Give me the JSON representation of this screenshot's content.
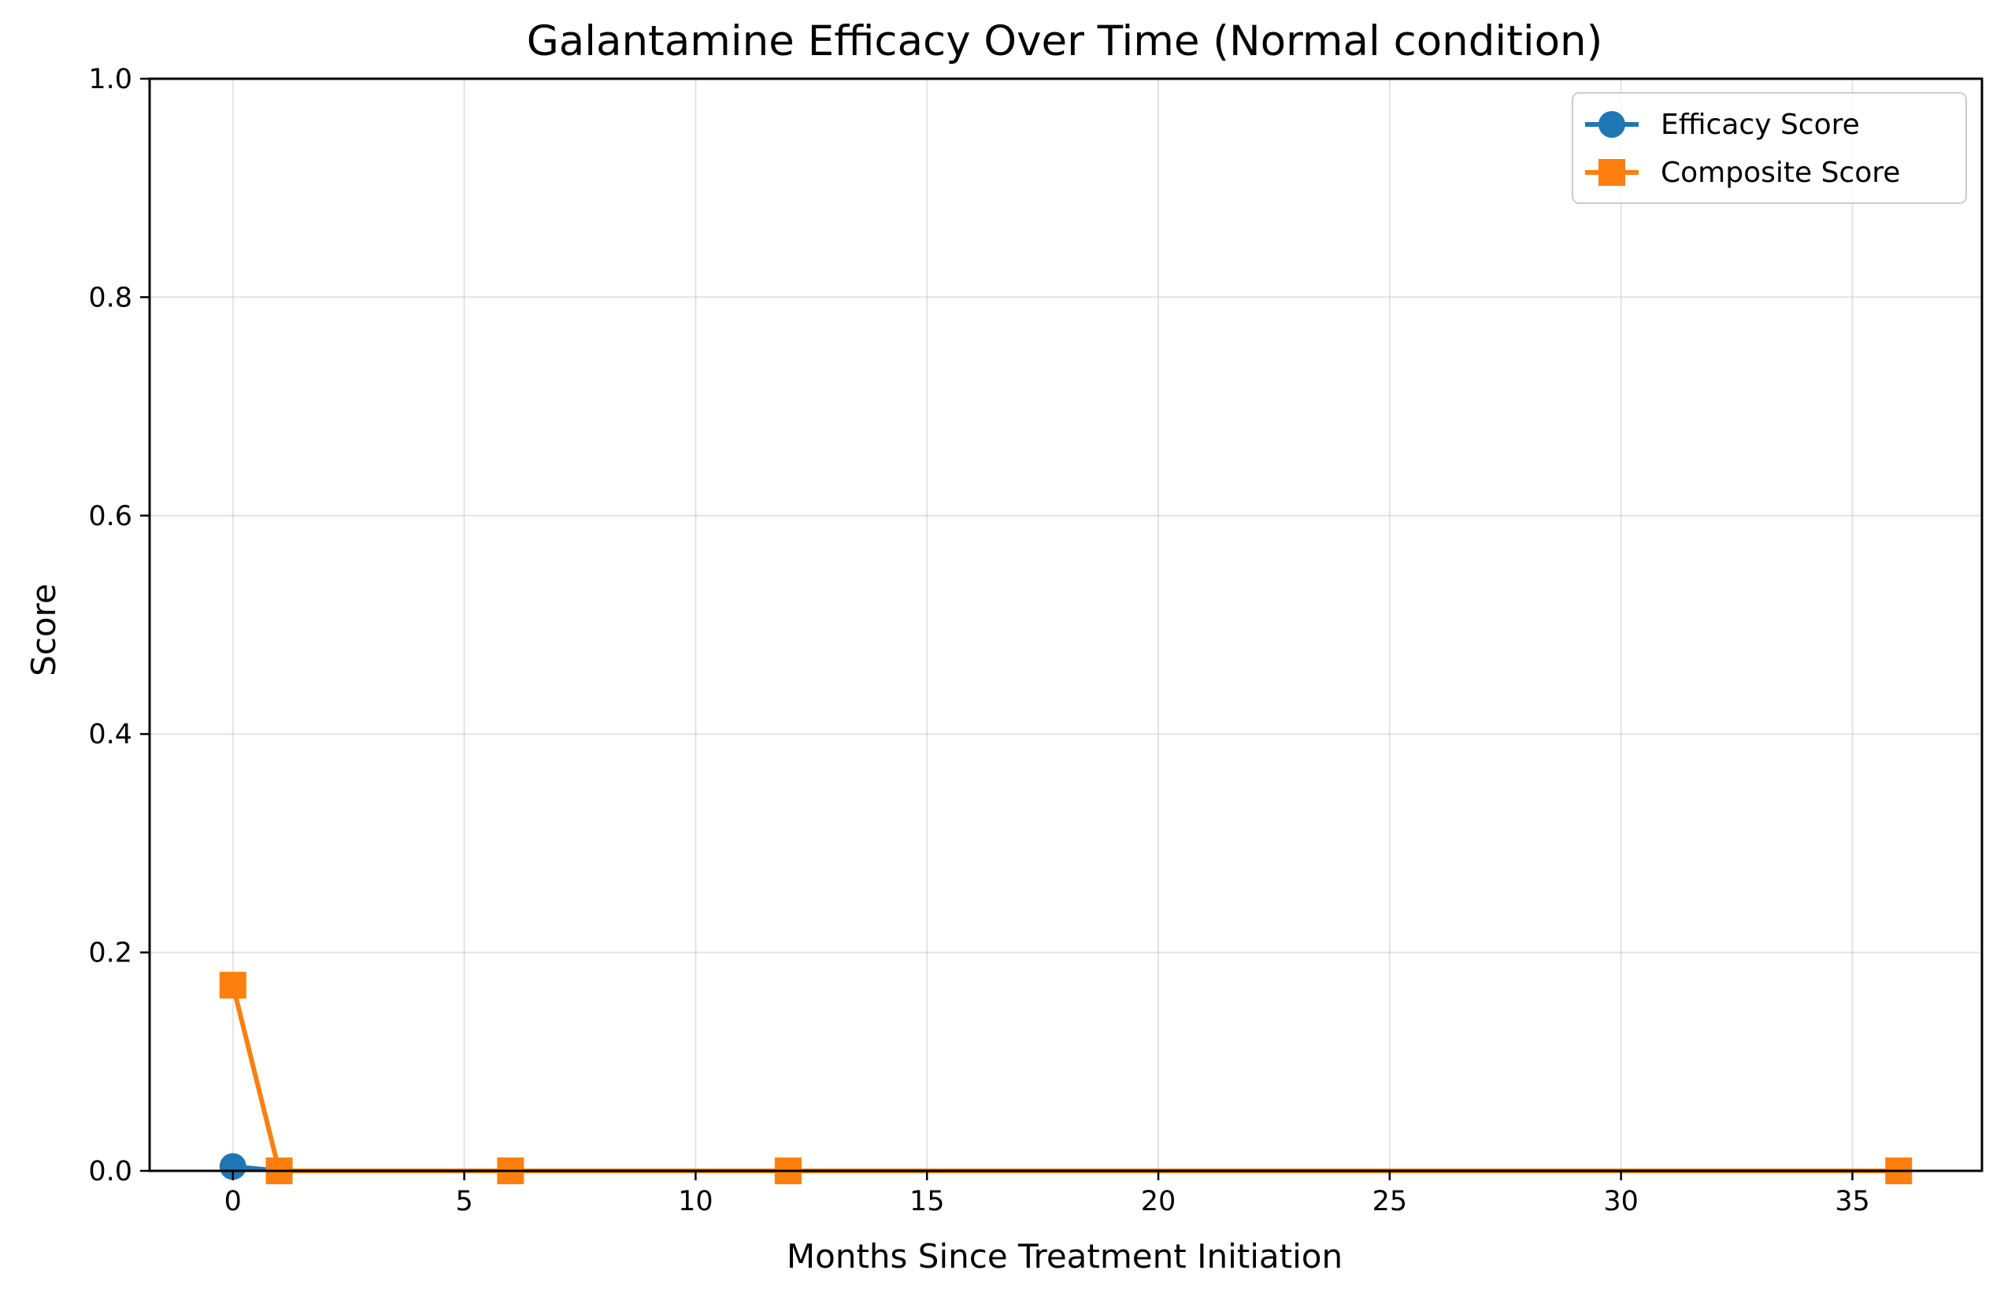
{
  "chart_data": {
    "type": "line",
    "title": "Galantamine Efficacy Over Time (Normal condition)",
    "xlabel": "Months Since Treatment Initiation",
    "ylabel": "Score",
    "xlim": [
      -1.8,
      37.8
    ],
    "ylim": [
      0,
      1.0
    ],
    "xticks": [
      0,
      5,
      10,
      15,
      20,
      25,
      30,
      35
    ],
    "xtick_labels": [
      "0",
      "5",
      "10",
      "15",
      "20",
      "25",
      "30",
      "35"
    ],
    "yticks": [
      0,
      0.2,
      0.4,
      0.6,
      0.8,
      1.0
    ],
    "ytick_labels": [
      "0.0",
      "0.2",
      "0.4",
      "0.6",
      "0.8",
      "1.0"
    ],
    "grid": true,
    "legend_position": "top-right",
    "series": [
      {
        "name": "Efficacy Score",
        "marker": "circle",
        "color": "#1f77b4",
        "x": [
          0,
          1,
          6,
          12,
          36
        ],
        "y": [
          0.004,
          0.0,
          0.0,
          0.0,
          0.0
        ]
      },
      {
        "name": "Composite Score",
        "marker": "square",
        "color": "#ff7f0e",
        "x": [
          0,
          1,
          6,
          12,
          36
        ],
        "y": [
          0.17,
          0.0,
          0.0,
          0.0,
          0.0
        ]
      }
    ]
  }
}
